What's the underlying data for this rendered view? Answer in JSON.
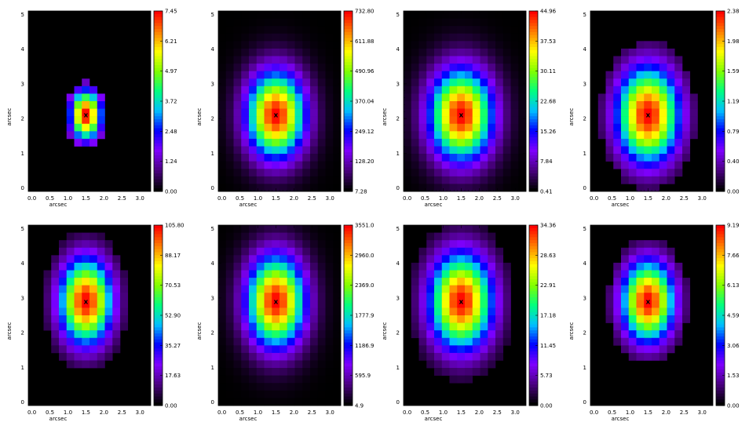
{
  "figure": {
    "colormap": [
      "#000000",
      "#4b0082",
      "#7f00ff",
      "#0000ff",
      "#00bfff",
      "#00ff80",
      "#80ff00",
      "#ffff00",
      "#ff8000",
      "#ff0000"
    ]
  },
  "chart_data": [
    {
      "type": "heatmap",
      "xlabel": "arcsec",
      "ylabel": "arcsec",
      "xticks": [
        "0.0",
        "0.5",
        "1.0",
        "1.5",
        "2.0",
        "2.5",
        "3.0"
      ],
      "yticks": [
        "0",
        "1",
        "2",
        "3",
        "4",
        "5"
      ],
      "xlim": [
        -0.1,
        3.3
      ],
      "ylim": [
        -0.1,
        5.1
      ],
      "marker": {
        "label": "x",
        "x": 1.5,
        "y": 2.1
      },
      "peak": {
        "x": 1.5,
        "y": 2.1
      },
      "sigma": [
        0.3,
        0.5
      ],
      "extent": [
        1.4,
        2.1
      ],
      "cutoff": 0.12,
      "colorbar": {
        "ticks": [
          "7.45",
          "6.21",
          "4.97",
          "3.72",
          "2.48",
          "1.24",
          "0.00"
        ]
      }
    },
    {
      "type": "heatmap",
      "xlabel": "arcsec",
      "ylabel": "arcsec",
      "xticks": [
        "0.0",
        "0.5",
        "1.0",
        "1.5",
        "2.0",
        "2.5",
        "3.0"
      ],
      "yticks": [
        "0",
        "1",
        "2",
        "3",
        "4",
        "5"
      ],
      "xlim": [
        -0.1,
        3.3
      ],
      "ylim": [
        -0.1,
        5.1
      ],
      "marker": {
        "label": "x",
        "x": 1.5,
        "y": 2.1
      },
      "peak": {
        "x": 1.5,
        "y": 2.1
      },
      "sigma": [
        0.55,
        0.85
      ],
      "extent": [
        3.5,
        5.5
      ],
      "cutoff": 0.0,
      "colorbar": {
        "ticks": [
          "732.80",
          "611.88",
          "490.96",
          "370.04",
          "249.12",
          "128.20",
          "7.28"
        ]
      }
    },
    {
      "type": "heatmap",
      "xlabel": "arcsec",
      "ylabel": "arcsec",
      "xticks": [
        "0.0",
        "0.5",
        "1.0",
        "1.5",
        "2.0",
        "2.5",
        "3.0"
      ],
      "yticks": [
        "0",
        "1",
        "2",
        "3",
        "4",
        "5"
      ],
      "xlim": [
        -0.1,
        3.3
      ],
      "ylim": [
        -0.1,
        5.1
      ],
      "marker": {
        "label": "x",
        "x": 1.5,
        "y": 2.1
      },
      "peak": {
        "x": 1.5,
        "y": 2.1
      },
      "sigma": [
        0.6,
        0.9
      ],
      "extent": [
        3.5,
        5.5
      ],
      "cutoff": 0.0,
      "colorbar": {
        "ticks": [
          "44.96",
          "37.53",
          "30.11",
          "22.68",
          "15.26",
          "7.84",
          "0.41"
        ]
      }
    },
    {
      "type": "heatmap",
      "xlabel": "arcsec",
      "ylabel": "arcsec",
      "xticks": [
        "0.0",
        "0.5",
        "1.0",
        "1.5",
        "2.0",
        "2.5",
        "3.0"
      ],
      "yticks": [
        "0",
        "1",
        "2",
        "3",
        "4",
        "5"
      ],
      "xlim": [
        -0.1,
        3.3
      ],
      "ylim": [
        -0.1,
        5.1
      ],
      "marker": {
        "label": "x",
        "x": 1.5,
        "y": 2.1
      },
      "peak": {
        "x": 1.5,
        "y": 2.1
      },
      "sigma": [
        0.6,
        0.95
      ],
      "extent": [
        1.9,
        3.2
      ],
      "cutoff": 0.08,
      "colorbar": {
        "ticks": [
          "2.38",
          "1.98",
          "1.59",
          "1.19",
          "0.79",
          "0.40",
          "0.00"
        ]
      }
    },
    {
      "type": "heatmap",
      "xlabel": "arcsec",
      "ylabel": "arcsec",
      "xticks": [
        "0.0",
        "0.5",
        "1.0",
        "1.5",
        "2.0",
        "2.5",
        "3.0"
      ],
      "yticks": [
        "0",
        "1",
        "2",
        "3",
        "4",
        "5"
      ],
      "xlim": [
        -0.1,
        3.3
      ],
      "ylim": [
        -0.1,
        5.1
      ],
      "marker": {
        "label": "x",
        "x": 1.5,
        "y": 2.9
      },
      "peak": {
        "x": 1.5,
        "y": 2.9
      },
      "sigma": [
        0.5,
        0.85
      ],
      "extent": [
        1.9,
        3.0
      ],
      "cutoff": 0.06,
      "colorbar": {
        "ticks": [
          "105.80",
          "88.17",
          "70.53",
          "52.90",
          "35.27",
          "17.63",
          "0.00"
        ]
      }
    },
    {
      "type": "heatmap",
      "xlabel": "arcsec",
      "ylabel": "arcsec",
      "xticks": [
        "0.0",
        "0.5",
        "1.0",
        "1.5",
        "2.0",
        "2.5",
        "3.0"
      ],
      "yticks": [
        "0",
        "1",
        "2",
        "3",
        "4",
        "5"
      ],
      "xlim": [
        -0.1,
        3.3
      ],
      "ylim": [
        -0.1,
        5.1
      ],
      "marker": {
        "label": "x",
        "x": 1.5,
        "y": 2.9
      },
      "peak": {
        "x": 1.5,
        "y": 2.9
      },
      "sigma": [
        0.55,
        0.9
      ],
      "extent": [
        3.5,
        5.5
      ],
      "cutoff": 0.0,
      "colorbar": {
        "ticks": [
          "3551.0",
          "2960.0",
          "2369.0",
          "1777.9",
          "1186.9",
          "595.9",
          "4.9"
        ]
      }
    },
    {
      "type": "heatmap",
      "xlabel": "arcsec",
      "ylabel": "arcsec",
      "xticks": [
        "0.0",
        "0.5",
        "1.0",
        "1.5",
        "2.0",
        "2.5",
        "3.0"
      ],
      "yticks": [
        "0",
        "1",
        "2",
        "3",
        "4",
        "5"
      ],
      "xlim": [
        -0.1,
        3.3
      ],
      "ylim": [
        -0.1,
        5.1
      ],
      "marker": {
        "label": "x",
        "x": 1.5,
        "y": 2.9
      },
      "peak": {
        "x": 1.5,
        "y": 2.9
      },
      "sigma": [
        0.6,
        0.95
      ],
      "extent": [
        2.2,
        3.3
      ],
      "cutoff": 0.05,
      "colorbar": {
        "ticks": [
          "34.36",
          "28.63",
          "22.91",
          "17.18",
          "11.45",
          "5.73",
          "0.00"
        ]
      }
    },
    {
      "type": "heatmap",
      "xlabel": "arcsec",
      "ylabel": "arcsec",
      "xticks": [
        "0.0",
        "0.5",
        "1.0",
        "1.5",
        "2.0",
        "2.5",
        "3.0"
      ],
      "yticks": [
        "0",
        "1",
        "2",
        "3",
        "4",
        "5"
      ],
      "xlim": [
        -0.1,
        3.3
      ],
      "ylim": [
        -0.1,
        5.1
      ],
      "marker": {
        "label": "x",
        "x": 1.5,
        "y": 2.9
      },
      "peak": {
        "x": 1.5,
        "y": 2.9
      },
      "sigma": [
        0.5,
        0.8
      ],
      "extent": [
        1.8,
        2.8
      ],
      "cutoff": 0.08,
      "colorbar": {
        "ticks": [
          "9.19",
          "7.66",
          "6.13",
          "4.59",
          "3.06",
          "1.53",
          "0.00"
        ]
      }
    }
  ]
}
